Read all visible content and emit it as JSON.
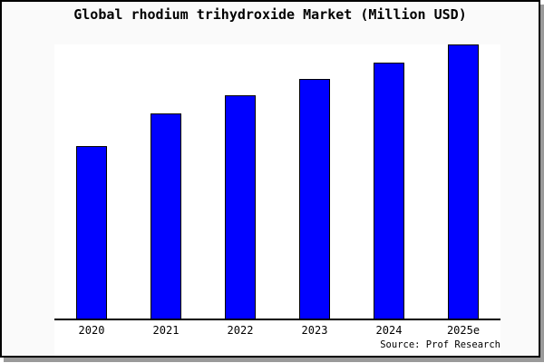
{
  "window": {
    "background_color": "#fafafa",
    "frame_border_color": "#000000",
    "shadow_color": "#9a9a9a"
  },
  "chart_data": {
    "type": "bar",
    "title": "Global rhodium trihydroxide Market (Million USD)",
    "categories": [
      "2020",
      "2021",
      "2022",
      "2023",
      "2024",
      "2025e"
    ],
    "values": [
      63,
      75,
      81.5,
      87.5,
      93.5,
      100
    ],
    "value_scale": "relative bar heights as % of tallest bar (2025e); y-axis has no ticks or labels",
    "ylim": [
      0,
      100
    ],
    "xlabel": "",
    "ylabel": "",
    "grid": false,
    "legend": false,
    "y_axis_visible": false,
    "x_axis_line_color": "#000000",
    "bar_fill": "#0000ff",
    "bar_border": "#000000",
    "plot_background": "#ffffff",
    "source_note": "Source: Prof Research"
  }
}
